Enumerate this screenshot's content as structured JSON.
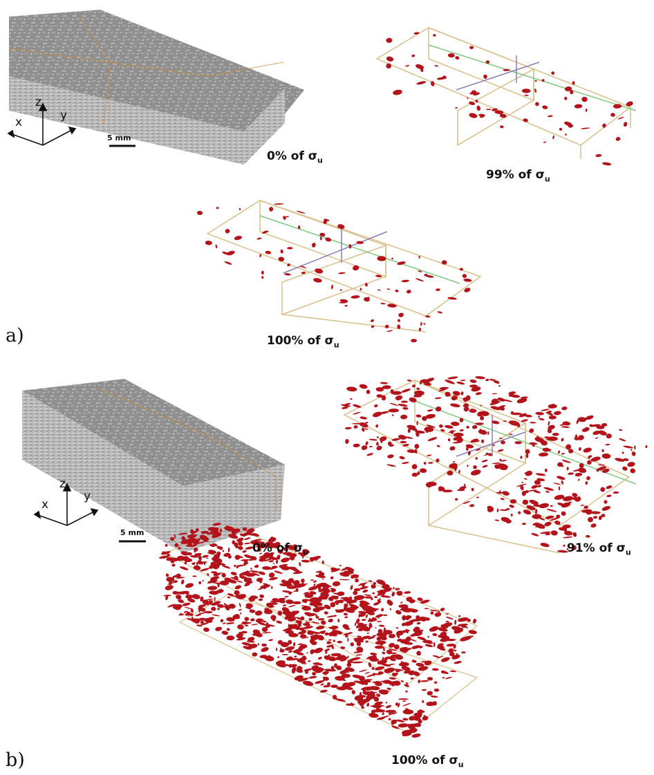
{
  "panels": [
    {
      "letter": "a)",
      "scale_bar": "5 mm",
      "axes": {
        "x": "x",
        "y": "y",
        "z": "z"
      },
      "captions": [
        "0% of σu",
        "99% of σu",
        "100% of σu"
      ],
      "caption_parts": [
        {
          "prefix": "0% of ",
          "sym": "σ",
          "sub": "u"
        },
        {
          "prefix": "99% of ",
          "sym": "σ",
          "sub": "u"
        },
        {
          "prefix": "100% of ",
          "sym": "σ",
          "sub": "u"
        }
      ]
    },
    {
      "letter": "b)",
      "scale_bar": "5 mm",
      "axes": {
        "x": "x",
        "y": "y",
        "z": "z"
      },
      "captions": [
        "0% of σu",
        "91% of σu",
        "100% of σu"
      ],
      "caption_parts": [
        {
          "prefix": "0% of ",
          "sym": "σ",
          "sub": "u"
        },
        {
          "prefix": "91% of ",
          "sym": "σ",
          "sub": "u"
        },
        {
          "prefix": "100% of ",
          "sym": "σ",
          "sub": "u"
        }
      ]
    }
  ],
  "colors": {
    "specimen_top": "#8f8f8f",
    "specimen_side": "#b9b9b9",
    "damage": "#b3141b",
    "frame": "#d8bf8a",
    "frame_axis_green": "#7fc77f",
    "frame_axis_purple": "#8a7ab5"
  }
}
